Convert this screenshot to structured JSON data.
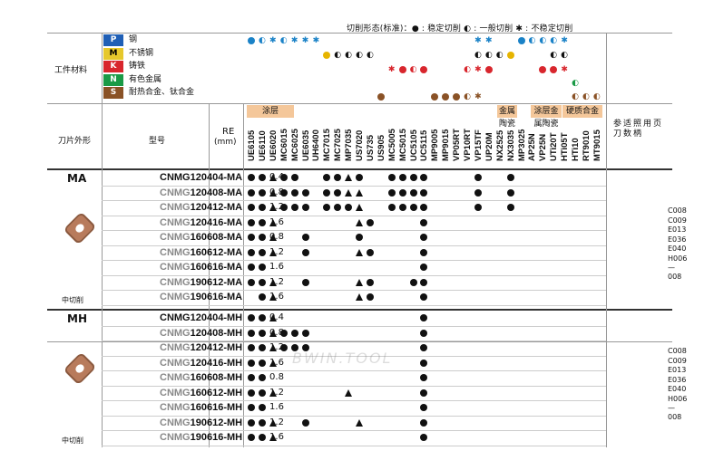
{
  "legend": {
    "text": "切削形态(标准)：● : 稳定切削  ◐ : 一般切削  ✱ : 不稳定切削"
  },
  "materials": {
    "label": "工件材料",
    "rows": [
      {
        "letter": "P",
        "name": "钢",
        "color": "#1f5fb6"
      },
      {
        "letter": "M",
        "name": "不锈钢",
        "color": "#e6c82c"
      },
      {
        "letter": "K",
        "name": "铸铁",
        "color": "#d8262d"
      },
      {
        "letter": "N",
        "name": "有色金属",
        "color": "#1a9a46"
      },
      {
        "letter": "S",
        "name": "耐热合金、钛合金",
        "color": "#8a5226"
      }
    ]
  },
  "headers": {
    "shape": "刀片外形",
    "model": "型号",
    "re": "RE",
    "re_unit": "(mm)",
    "ref": "参适照用页刀数柄"
  },
  "groups": [
    "涂层",
    "金属陶瓷",
    "涂层金属陶瓷",
    "硬质合金"
  ],
  "grades": [
    "UE6105",
    "UE6110",
    "UE6020",
    "MC6015",
    "MC6025",
    "UE6035",
    "UH6400",
    "MC7015",
    "MC7025",
    "MP7035",
    "US7020",
    "US735",
    "US905",
    "MC5005",
    "MC5015",
    "UC5105",
    "UC5115",
    "MP9005",
    "MP9015",
    "VP05RT",
    "VP10RT",
    "VP15TF",
    "UP20M",
    "NX2525",
    "NX3035",
    "MP3025",
    "AP25N",
    "VP25N",
    "UTi20T",
    "HTi05T",
    "HTi10",
    "RT9010",
    "MT9015"
  ],
  "sections": [
    {
      "name": "MA",
      "sub": "中切削",
      "rows": [
        {
          "model": "CNMG120404-MA",
          "re": "0.4"
        },
        {
          "model": "CNMG120408-MA",
          "re": "0.8"
        },
        {
          "model": "CNMG120412-MA",
          "re": "1.2"
        },
        {
          "model": "CNMG120416-MA",
          "re": "1.6"
        },
        {
          "model": "CNMG160608-MA",
          "re": "0.8"
        },
        {
          "model": "CNMG160612-MA",
          "re": "1.2"
        },
        {
          "model": "CNMG160616-MA",
          "re": "1.6"
        },
        {
          "model": "CNMG190612-MA",
          "re": "1.2"
        },
        {
          "model": "CNMG190616-MA",
          "re": "1.6"
        }
      ],
      "refs": [
        "C008",
        "C009",
        "E013",
        "E036",
        "E040",
        "H006",
        "—008"
      ]
    },
    {
      "name": "MH",
      "sub": "中切削",
      "rows": [
        {
          "model": "CNMG120404-MH",
          "re": "0.4"
        },
        {
          "model": "CNMG120408-MH",
          "re": "0.8"
        },
        {
          "model": "CNMG120412-MH",
          "re": "1.2"
        },
        {
          "model": "CNMG120416-MH",
          "re": "1.6"
        },
        {
          "model": "CNMG160608-MH",
          "re": "0.8"
        },
        {
          "model": "CNMG160612-MH",
          "re": "1.2"
        },
        {
          "model": "CNMG160616-MH",
          "re": "1.6"
        },
        {
          "model": "CNMG190612-MH",
          "re": "1.2"
        },
        {
          "model": "CNMG190616-MH",
          "re": "1.6"
        }
      ],
      "refs": [
        "C008",
        "C009",
        "E013",
        "E036",
        "E040",
        "H006",
        "—008"
      ]
    }
  ],
  "watermark": "BWIN.TOOL"
}
